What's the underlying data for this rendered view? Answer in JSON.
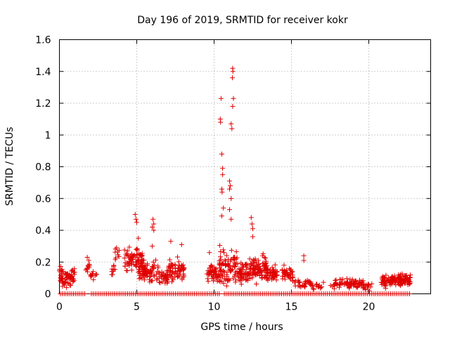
{
  "chart_data": {
    "type": "scatter",
    "title": "Day 196 of 2019, SRMTID for receiver kokr",
    "xlabel": "GPS time / hours",
    "ylabel": "SRMTID / TECUs",
    "xlim": [
      0,
      24
    ],
    "ylim": [
      0,
      1.6
    ],
    "x_ticks": [
      0,
      5,
      10,
      15,
      20
    ],
    "x_tick_labels": [
      "0",
      "5",
      "10",
      "15",
      "20"
    ],
    "y_ticks": [
      0,
      0.2,
      0.4,
      0.6,
      0.8,
      1.0,
      1.2,
      1.4,
      1.6
    ],
    "y_tick_labels": [
      "0",
      "0.2",
      "0.4",
      "0.6",
      "0.8",
      "1",
      "1.2",
      "1.4",
      "1.6"
    ],
    "grid": true,
    "marker": "plus",
    "color": "#e00000",
    "highlights": [
      [
        10.45,
        1.23
      ],
      [
        10.4,
        1.1
      ],
      [
        10.42,
        1.08
      ],
      [
        10.5,
        0.88
      ],
      [
        10.55,
        0.79
      ],
      [
        10.55,
        0.75
      ],
      [
        10.5,
        0.66
      ],
      [
        10.52,
        0.64
      ],
      [
        10.6,
        0.54
      ],
      [
        10.5,
        0.49
      ],
      [
        11.2,
        1.42
      ],
      [
        11.22,
        1.4
      ],
      [
        11.18,
        1.36
      ],
      [
        11.25,
        1.23
      ],
      [
        11.2,
        1.18
      ],
      [
        11.1,
        1.07
      ],
      [
        11.15,
        1.04
      ],
      [
        11.0,
        0.71
      ],
      [
        11.05,
        0.68
      ],
      [
        11.0,
        0.66
      ],
      [
        11.1,
        0.6
      ],
      [
        11.0,
        0.53
      ],
      [
        11.1,
        0.47
      ],
      [
        12.4,
        0.48
      ],
      [
        12.45,
        0.44
      ],
      [
        12.5,
        0.41
      ],
      [
        12.5,
        0.36
      ],
      [
        4.9,
        0.5
      ],
      [
        4.95,
        0.47
      ],
      [
        5.0,
        0.45
      ],
      [
        6.05,
        0.47
      ],
      [
        6.1,
        0.44
      ],
      [
        6.0,
        0.42
      ],
      [
        6.1,
        0.4
      ],
      [
        5.1,
        0.35
      ],
      [
        3.7,
        0.29
      ],
      [
        6.0,
        0.3
      ],
      [
        7.2,
        0.33
      ],
      [
        7.9,
        0.31
      ],
      [
        9.7,
        0.26
      ],
      [
        15.8,
        0.24
      ],
      [
        15.8,
        0.21
      ],
      [
        1.8,
        0.23
      ],
      [
        1.9,
        0.21
      ]
    ],
    "clusters": [
      {
        "x0": 0.0,
        "x1": 1.0,
        "y_mid": 0.1,
        "y_spread": 0.09,
        "count": 75
      },
      {
        "x0": 1.7,
        "x1": 1.95,
        "y_mid": 0.17,
        "y_spread": 0.05,
        "count": 10
      },
      {
        "x0": 2.0,
        "x1": 2.4,
        "y_mid": 0.12,
        "y_spread": 0.04,
        "count": 12
      },
      {
        "x0": 3.3,
        "x1": 3.6,
        "y_mid": 0.15,
        "y_spread": 0.06,
        "count": 10
      },
      {
        "x0": 3.6,
        "x1": 3.9,
        "y_mid": 0.25,
        "y_spread": 0.05,
        "count": 8
      },
      {
        "x0": 4.2,
        "x1": 5.4,
        "y_mid": 0.22,
        "y_spread": 0.1,
        "count": 80
      },
      {
        "x0": 5.1,
        "x1": 6.4,
        "y_mid": 0.14,
        "y_spread": 0.09,
        "count": 80
      },
      {
        "x0": 6.4,
        "x1": 7.0,
        "y_mid": 0.1,
        "y_spread": 0.06,
        "count": 30
      },
      {
        "x0": 7.0,
        "x1": 8.1,
        "y_mid": 0.15,
        "y_spread": 0.1,
        "count": 70
      },
      {
        "x0": 9.5,
        "x1": 10.3,
        "y_mid": 0.13,
        "y_spread": 0.08,
        "count": 45
      },
      {
        "x0": 10.3,
        "x1": 11.5,
        "y_mid": 0.17,
        "y_spread": 0.15,
        "count": 90
      },
      {
        "x0": 11.5,
        "x1": 12.3,
        "y_mid": 0.14,
        "y_spread": 0.1,
        "count": 55
      },
      {
        "x0": 12.3,
        "x1": 13.5,
        "y_mid": 0.16,
        "y_spread": 0.12,
        "count": 95
      },
      {
        "x0": 13.5,
        "x1": 14.1,
        "y_mid": 0.12,
        "y_spread": 0.07,
        "count": 35
      },
      {
        "x0": 14.4,
        "x1": 15.1,
        "y_mid": 0.12,
        "y_spread": 0.07,
        "count": 40
      },
      {
        "x0": 15.2,
        "x1": 16.3,
        "y_mid": 0.06,
        "y_spread": 0.04,
        "count": 30
      },
      {
        "x0": 16.3,
        "x1": 17.8,
        "y_mid": 0.05,
        "y_spread": 0.03,
        "count": 20
      },
      {
        "x0": 17.8,
        "x1": 18.6,
        "y_mid": 0.07,
        "y_spread": 0.04,
        "count": 25
      },
      {
        "x0": 18.6,
        "x1": 19.5,
        "y_mid": 0.06,
        "y_spread": 0.04,
        "count": 45
      },
      {
        "x0": 19.5,
        "x1": 20.2,
        "y_mid": 0.05,
        "y_spread": 0.04,
        "count": 25
      },
      {
        "x0": 20.8,
        "x1": 21.5,
        "y_mid": 0.08,
        "y_spread": 0.05,
        "count": 45
      },
      {
        "x0": 21.5,
        "x1": 22.7,
        "y_mid": 0.09,
        "y_spread": 0.05,
        "count": 85
      }
    ],
    "zero_ranges": [
      [
        0.0,
        1.7
      ],
      [
        2.0,
        10.4
      ],
      [
        10.6,
        22.7
      ]
    ],
    "zero_count": 180
  }
}
